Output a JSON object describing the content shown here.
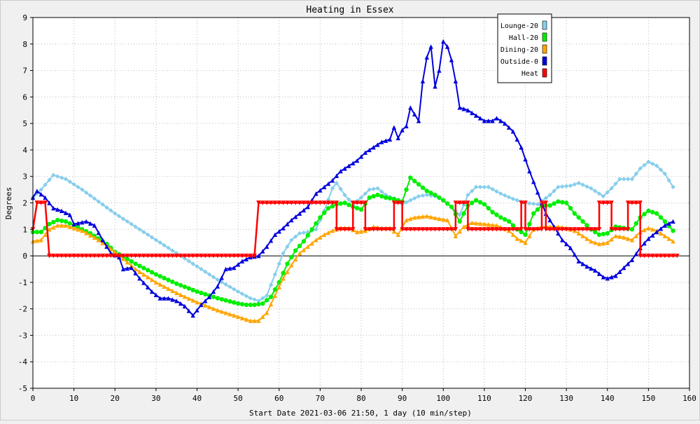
{
  "chart_data": {
    "type": "line",
    "title": "Heating in Essex",
    "xlabel": "Start Date 2021-03-06 21:50, 1 day (10 min/step)",
    "ylabel": "Degrees",
    "xlim": [
      0,
      160
    ],
    "ylim": [
      -5,
      9
    ],
    "x_ticks": [
      0,
      10,
      20,
      30,
      40,
      50,
      60,
      70,
      80,
      90,
      100,
      110,
      120,
      130,
      140,
      150,
      160
    ],
    "y_ticks": [
      -5,
      -4,
      -3,
      -2,
      -1,
      0,
      1,
      2,
      3,
      4,
      5,
      6,
      7,
      8,
      9
    ],
    "grid": true,
    "legend_position": "top-right",
    "series": [
      {
        "name": "Lounge-20",
        "color": "#87ceeb",
        "marker": "diamond",
        "points": [
          [
            0,
            2.2
          ],
          [
            2,
            2.5
          ],
          [
            5,
            3.05
          ],
          [
            8,
            2.9
          ],
          [
            12,
            2.5
          ],
          [
            16,
            2.05
          ],
          [
            20,
            1.6
          ],
          [
            25,
            1.1
          ],
          [
            30,
            0.6
          ],
          [
            35,
            0.1
          ],
          [
            40,
            -0.4
          ],
          [
            45,
            -0.9
          ],
          [
            50,
            -1.35
          ],
          [
            53,
            -1.6
          ],
          [
            55,
            -1.7
          ],
          [
            57,
            -1.5
          ],
          [
            59,
            -0.7
          ],
          [
            61,
            0.1
          ],
          [
            63,
            0.6
          ],
          [
            65,
            0.85
          ],
          [
            67,
            0.9
          ],
          [
            69,
            1.0
          ],
          [
            71,
            1.7
          ],
          [
            73,
            2.55
          ],
          [
            74,
            2.75
          ],
          [
            76,
            2.3
          ],
          [
            78,
            1.95
          ],
          [
            80,
            2.2
          ],
          [
            82,
            2.5
          ],
          [
            84,
            2.55
          ],
          [
            86,
            2.3
          ],
          [
            88,
            2.15
          ],
          [
            90,
            1.95
          ],
          [
            92,
            2.1
          ],
          [
            94,
            2.25
          ],
          [
            96,
            2.3
          ],
          [
            98,
            2.25
          ],
          [
            100,
            2.1
          ],
          [
            102,
            1.85
          ],
          [
            104,
            1.55
          ],
          [
            106,
            2.3
          ],
          [
            108,
            2.6
          ],
          [
            111,
            2.6
          ],
          [
            114,
            2.35
          ],
          [
            117,
            2.15
          ],
          [
            120,
            2.0
          ],
          [
            123,
            1.95
          ],
          [
            126,
            2.3
          ],
          [
            128,
            2.6
          ],
          [
            131,
            2.65
          ],
          [
            133,
            2.75
          ],
          [
            136,
            2.55
          ],
          [
            139,
            2.25
          ],
          [
            141,
            2.55
          ],
          [
            143,
            2.9
          ],
          [
            146,
            2.9
          ],
          [
            148,
            3.3
          ],
          [
            150,
            3.55
          ],
          [
            152,
            3.4
          ],
          [
            154,
            3.1
          ],
          [
            156,
            2.6
          ]
        ]
      },
      {
        "name": "Hall-20",
        "color": "#00ee00",
        "marker": "circle",
        "points": [
          [
            0,
            0.9
          ],
          [
            2,
            0.9
          ],
          [
            4,
            1.2
          ],
          [
            6,
            1.35
          ],
          [
            8,
            1.3
          ],
          [
            10,
            1.15
          ],
          [
            14,
            0.85
          ],
          [
            18,
            0.45
          ],
          [
            20,
            0.15
          ],
          [
            25,
            -0.3
          ],
          [
            30,
            -0.7
          ],
          [
            35,
            -1.05
          ],
          [
            40,
            -1.35
          ],
          [
            45,
            -1.6
          ],
          [
            50,
            -1.8
          ],
          [
            52,
            -1.85
          ],
          [
            54,
            -1.85
          ],
          [
            56,
            -1.8
          ],
          [
            58,
            -1.55
          ],
          [
            60,
            -1.0
          ],
          [
            62,
            -0.3
          ],
          [
            64,
            0.2
          ],
          [
            66,
            0.55
          ],
          [
            68,
            1.0
          ],
          [
            70,
            1.45
          ],
          [
            72,
            1.8
          ],
          [
            74,
            1.95
          ],
          [
            76,
            2.0
          ],
          [
            78,
            1.85
          ],
          [
            80,
            1.75
          ],
          [
            82,
            2.2
          ],
          [
            84,
            2.3
          ],
          [
            86,
            2.2
          ],
          [
            88,
            2.15
          ],
          [
            90,
            2.05
          ],
          [
            92,
            2.95
          ],
          [
            94,
            2.7
          ],
          [
            96,
            2.45
          ],
          [
            98,
            2.3
          ],
          [
            100,
            2.1
          ],
          [
            102,
            1.85
          ],
          [
            104,
            1.3
          ],
          [
            106,
            1.9
          ],
          [
            108,
            2.1
          ],
          [
            110,
            1.95
          ],
          [
            112,
            1.65
          ],
          [
            114,
            1.45
          ],
          [
            116,
            1.3
          ],
          [
            118,
            1.0
          ],
          [
            120,
            0.8
          ],
          [
            122,
            1.6
          ],
          [
            124,
            1.9
          ],
          [
            126,
            1.9
          ],
          [
            128,
            2.05
          ],
          [
            130,
            2.0
          ],
          [
            132,
            1.6
          ],
          [
            134,
            1.3
          ],
          [
            136,
            1.0
          ],
          [
            138,
            0.8
          ],
          [
            140,
            0.85
          ],
          [
            142,
            1.1
          ],
          [
            144,
            1.05
          ],
          [
            146,
            1.0
          ],
          [
            148,
            1.45
          ],
          [
            150,
            1.7
          ],
          [
            152,
            1.6
          ],
          [
            154,
            1.3
          ],
          [
            156,
            0.95
          ]
        ]
      },
      {
        "name": "Dining-20",
        "color": "#ffa500",
        "marker": "triangle",
        "points": [
          [
            0,
            0.55
          ],
          [
            2,
            0.6
          ],
          [
            4,
            1.0
          ],
          [
            6,
            1.15
          ],
          [
            8,
            1.15
          ],
          [
            12,
            0.95
          ],
          [
            16,
            0.6
          ],
          [
            20,
            0.15
          ],
          [
            25,
            -0.5
          ],
          [
            30,
            -1.0
          ],
          [
            35,
            -1.4
          ],
          [
            40,
            -1.75
          ],
          [
            45,
            -2.05
          ],
          [
            50,
            -2.3
          ],
          [
            53,
            -2.45
          ],
          [
            55,
            -2.45
          ],
          [
            57,
            -2.15
          ],
          [
            59,
            -1.5
          ],
          [
            61,
            -0.85
          ],
          [
            63,
            -0.35
          ],
          [
            65,
            0.1
          ],
          [
            67,
            0.35
          ],
          [
            69,
            0.6
          ],
          [
            71,
            0.8
          ],
          [
            73,
            0.95
          ],
          [
            75,
            1.05
          ],
          [
            77,
            1.05
          ],
          [
            79,
            0.9
          ],
          [
            81,
            0.95
          ],
          [
            83,
            1.1
          ],
          [
            85,
            1.05
          ],
          [
            87,
            1.05
          ],
          [
            89,
            0.8
          ],
          [
            91,
            1.35
          ],
          [
            93,
            1.45
          ],
          [
            96,
            1.5
          ],
          [
            99,
            1.4
          ],
          [
            101,
            1.35
          ],
          [
            103,
            0.75
          ],
          [
            105,
            1.1
          ],
          [
            107,
            1.25
          ],
          [
            110,
            1.2
          ],
          [
            113,
            1.15
          ],
          [
            116,
            0.95
          ],
          [
            118,
            0.65
          ],
          [
            120,
            0.5
          ],
          [
            122,
            1.0
          ],
          [
            124,
            1.1
          ],
          [
            126,
            1.1
          ],
          [
            128,
            1.1
          ],
          [
            130,
            1.05
          ],
          [
            132,
            0.95
          ],
          [
            134,
            0.75
          ],
          [
            136,
            0.55
          ],
          [
            138,
            0.45
          ],
          [
            140,
            0.5
          ],
          [
            142,
            0.75
          ],
          [
            144,
            0.7
          ],
          [
            146,
            0.6
          ],
          [
            148,
            0.9
          ],
          [
            150,
            1.05
          ],
          [
            152,
            0.95
          ],
          [
            154,
            0.75
          ],
          [
            156,
            0.55
          ]
        ]
      },
      {
        "name": "Outside-0",
        "color": "#0000dd",
        "marker": "triangle",
        "points": [
          [
            0,
            2.2
          ],
          [
            1,
            2.45
          ],
          [
            3,
            2.2
          ],
          [
            5,
            1.8
          ],
          [
            7,
            1.7
          ],
          [
            9,
            1.55
          ],
          [
            10,
            1.2
          ],
          [
            13,
            1.3
          ],
          [
            15,
            1.15
          ],
          [
            17,
            0.6
          ],
          [
            19,
            0.1
          ],
          [
            21,
            -0.05
          ],
          [
            22,
            -0.5
          ],
          [
            24,
            -0.45
          ],
          [
            26,
            -0.85
          ],
          [
            29,
            -1.35
          ],
          [
            31,
            -1.6
          ],
          [
            33,
            -1.6
          ],
          [
            35,
            -1.7
          ],
          [
            37,
            -1.9
          ],
          [
            39,
            -2.25
          ],
          [
            41,
            -1.85
          ],
          [
            43,
            -1.55
          ],
          [
            45,
            -1.15
          ],
          [
            47,
            -0.5
          ],
          [
            49,
            -0.45
          ],
          [
            51,
            -0.2
          ],
          [
            53,
            -0.05
          ],
          [
            55,
            0.0
          ],
          [
            57,
            0.35
          ],
          [
            59,
            0.8
          ],
          [
            61,
            1.05
          ],
          [
            63,
            1.35
          ],
          [
            65,
            1.6
          ],
          [
            67,
            1.85
          ],
          [
            69,
            2.35
          ],
          [
            71,
            2.6
          ],
          [
            73,
            2.85
          ],
          [
            75,
            3.2
          ],
          [
            77,
            3.4
          ],
          [
            79,
            3.6
          ],
          [
            81,
            3.9
          ],
          [
            83,
            4.1
          ],
          [
            85,
            4.3
          ],
          [
            87,
            4.4
          ],
          [
            88,
            4.85
          ],
          [
            89,
            4.45
          ],
          [
            90,
            4.75
          ],
          [
            91,
            4.9
          ],
          [
            92,
            5.6
          ],
          [
            93,
            5.35
          ],
          [
            94,
            5.1
          ],
          [
            95,
            6.6
          ],
          [
            96,
            7.5
          ],
          [
            97,
            7.9
          ],
          [
            98,
            6.4
          ],
          [
            99,
            7.0
          ],
          [
            100,
            8.1
          ],
          [
            101,
            7.9
          ],
          [
            102,
            7.4
          ],
          [
            103,
            6.6
          ],
          [
            104,
            5.6
          ],
          [
            106,
            5.5
          ],
          [
            108,
            5.3
          ],
          [
            110,
            5.1
          ],
          [
            112,
            5.1
          ],
          [
            113,
            5.2
          ],
          [
            115,
            5.0
          ],
          [
            117,
            4.7
          ],
          [
            119,
            4.1
          ],
          [
            121,
            3.2
          ],
          [
            123,
            2.4
          ],
          [
            125,
            1.6
          ],
          [
            127,
            1.1
          ],
          [
            129,
            0.6
          ],
          [
            131,
            0.3
          ],
          [
            133,
            -0.2
          ],
          [
            135,
            -0.4
          ],
          [
            137,
            -0.55
          ],
          [
            139,
            -0.8
          ],
          [
            140,
            -0.85
          ],
          [
            142,
            -0.75
          ],
          [
            144,
            -0.45
          ],
          [
            146,
            -0.15
          ],
          [
            148,
            0.3
          ],
          [
            150,
            0.65
          ],
          [
            152,
            0.9
          ],
          [
            154,
            1.15
          ],
          [
            156,
            1.3
          ]
        ]
      },
      {
        "name": "Heat",
        "color": "#ff0000",
        "marker": "triangle-down",
        "points": [
          [
            0,
            1
          ],
          [
            1,
            2
          ],
          [
            3,
            2
          ],
          [
            4,
            0
          ],
          [
            54,
            0
          ],
          [
            55,
            2
          ],
          [
            74,
            2
          ],
          [
            74,
            1
          ],
          [
            78,
            1
          ],
          [
            78,
            2
          ],
          [
            81,
            2
          ],
          [
            81,
            1
          ],
          [
            88,
            1
          ],
          [
            88,
            2
          ],
          [
            90,
            2
          ],
          [
            90,
            1
          ],
          [
            103,
            1
          ],
          [
            103,
            2
          ],
          [
            106,
            2
          ],
          [
            106,
            1
          ],
          [
            119,
            1
          ],
          [
            119,
            2
          ],
          [
            120,
            2
          ],
          [
            120,
            1
          ],
          [
            124,
            1
          ],
          [
            124,
            2
          ],
          [
            125,
            2
          ],
          [
            125,
            1
          ],
          [
            138,
            1
          ],
          [
            138,
            2
          ],
          [
            141,
            2
          ],
          [
            141,
            1
          ],
          [
            145,
            1
          ],
          [
            145,
            2
          ],
          [
            148,
            2
          ],
          [
            148,
            0
          ],
          [
            157,
            0
          ]
        ]
      }
    ]
  }
}
